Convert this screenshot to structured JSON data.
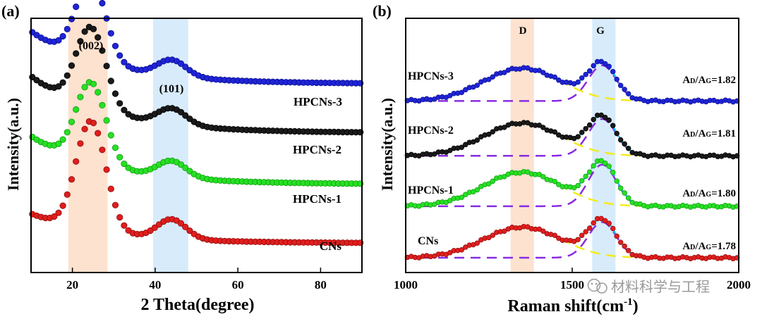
{
  "chart_data": [
    {
      "panel_label": "(a)",
      "type": "scatter",
      "xlabel": "2 Theta(degree)",
      "ylabel": "Intensity(a.u.)",
      "xlim": [
        10,
        90
      ],
      "x_ticks": [
        20,
        40,
        60,
        80
      ],
      "y_ticks_shown": false,
      "highlight_bands": [
        {
          "name": "band-002",
          "range": [
            19,
            28.5
          ],
          "color": "#fde2cf",
          "label": "(002)"
        },
        {
          "name": "band-101",
          "range": [
            39.5,
            48
          ],
          "color": "#d7ebfb",
          "label": "(101)"
        }
      ],
      "peak_model": {
        "peak_002_center": 24.5,
        "peak_002_width": 3.6,
        "peak_101_center": 44,
        "peak_101_width": 3.5
      },
      "series": [
        {
          "name": "HPCNs-3",
          "color": "#1f24d6",
          "edge": "#0b0f8c",
          "offset": 0.8,
          "base_start": 0.3,
          "base_end": 0.06,
          "peak_002": 0.37,
          "peak_101": 0.075
        },
        {
          "name": "HPCNs-2",
          "color": "#1a1a1a",
          "edge": "#000000",
          "offset": 0.575,
          "base_start": 0.32,
          "base_end": 0.06,
          "peak_002": 0.37,
          "peak_101": 0.075
        },
        {
          "name": "HPCNs-1",
          "color": "#27e024",
          "edge": "#0f9a0f",
          "offset": 0.34,
          "base_start": 0.28,
          "base_end": 0.06,
          "peak_002": 0.37,
          "peak_101": 0.075
        },
        {
          "name": "CNs",
          "color": "#e01e1e",
          "edge": "#8e0b0b",
          "offset": 0.07,
          "base_start": 0.19,
          "base_end": 0.055,
          "peak_002": 0.5,
          "peak_101": 0.09
        }
      ]
    },
    {
      "panel_label": "(b)",
      "type": "scatter",
      "xlabel": "Raman shift(cm",
      "xlabel_sup": "-1",
      "xlabel_tail": ")",
      "ylabel": "Intensity(a.u.)",
      "xlim": [
        1000,
        2000
      ],
      "x_ticks": [
        1000,
        1500,
        2000
      ],
      "y_ticks_shown": false,
      "highlight_bands": [
        {
          "name": "band-D",
          "range": [
            1315,
            1385
          ],
          "color": "#fde2cf",
          "label": "D"
        },
        {
          "name": "band-G",
          "range": [
            1560,
            1630
          ],
          "color": "#d7ebfb",
          "label": "G"
        }
      ],
      "peak_model": {
        "D_center": 1350,
        "D_width": 115,
        "G_center": 1590,
        "G_width": 42
      },
      "fit_colors": {
        "total_fit": "#19c5e8",
        "D_component": "#f2ec19",
        "G_component": "#8a2be2"
      },
      "series": [
        {
          "name": "HPCNs-3",
          "color": "#1f24d6",
          "edge": "#0b0f8c",
          "offset": 0.7,
          "D_height": 0.77,
          "G_height": 0.84,
          "ratio_label": "A",
          "ratio_sub_d": "D",
          "ratio_sep": "/A",
          "ratio_sub_g": "G",
          "ratio_value": "=1.82"
        },
        {
          "name": "HPCNs-2",
          "color": "#1a1a1a",
          "edge": "#000000",
          "offset": 0.455,
          "D_height": 0.77,
          "G_height": 0.87,
          "ratio_label": "A",
          "ratio_sub_d": "D",
          "ratio_sep": "/A",
          "ratio_sub_g": "G",
          "ratio_value": "=1.81"
        },
        {
          "name": "HPCNs-1",
          "color": "#27e024",
          "edge": "#0f9a0f",
          "offset": 0.23,
          "D_height": 0.8,
          "G_height": 0.98,
          "ratio_label": "A",
          "ratio_sub_d": "D",
          "ratio_sep": "/A",
          "ratio_sub_g": "G",
          "ratio_value": "=1.80"
        },
        {
          "name": "CNs",
          "color": "#e01e1e",
          "edge": "#8e0b0b",
          "offset": 0.0,
          "D_height": 0.72,
          "G_height": 0.84,
          "ratio_label": "A",
          "ratio_sub_d": "D",
          "ratio_sep": "/A",
          "ratio_sub_g": "G",
          "ratio_value": "=1.78"
        }
      ]
    }
  ],
  "watermark": {
    "icon": "wechat-icon",
    "text": "材料科学与工程"
  }
}
